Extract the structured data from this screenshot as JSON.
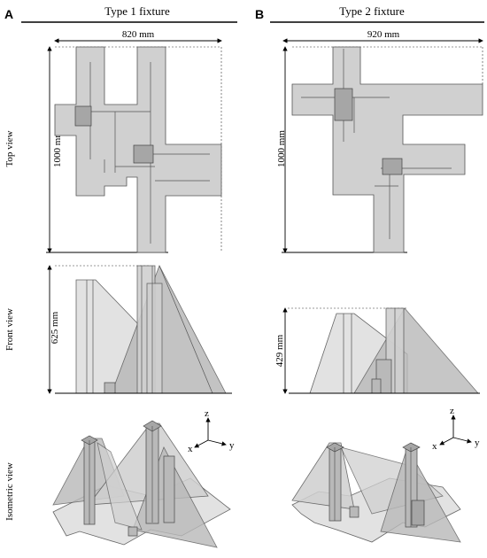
{
  "panels": [
    {
      "letter": "A",
      "title": "Type 1 fixture",
      "width": "820 mm",
      "depth": "1000 mm",
      "height": "625 mm"
    },
    {
      "letter": "B",
      "title": "Type 2 fixture",
      "width": "920 mm",
      "depth": "1000 mm",
      "height": "429 mm"
    }
  ],
  "rows": {
    "top": "Top view",
    "front": "Front view",
    "iso": "Isometric view"
  },
  "axes": {
    "z": "z",
    "x": "x",
    "y": "y"
  },
  "colors": {
    "plate": "#d0d0d0",
    "box": "#a6a6a6",
    "outline": "#555555"
  }
}
